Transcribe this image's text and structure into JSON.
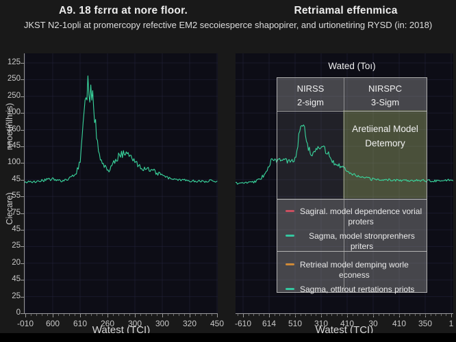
{
  "header": {
    "subtitle": "JKST N2-1opli at promercopy refective EM2 secoiesperce shapopirer, and urtionetiring RYSD (in: 2018)"
  },
  "colors": {
    "background": "#191919",
    "plot_background": "#0d0d16",
    "grid": "#23233c",
    "axis": "#9a9a9a",
    "tick_label": "#c9c9c9",
    "title_text": "#ececec",
    "spectrum_line": "#3ad79e",
    "legend_panel_gray": "rgba(150,150,150,0.42)",
    "legend_panel_dim": "rgba(150,150,150,0.15)",
    "legend_panel_green": "rgba(160,175,110,0.42)",
    "legend_border": "#b2b2b2"
  },
  "chart_data": [
    {
      "type": "line",
      "panel": "left",
      "title": "A9. 18 fɛrrɑ at nore floor.",
      "xlabel": "Watest (TCI)",
      "ylabel_upper": "nnoetíñlhris)",
      "ylabel_lower": "Ciecare)",
      "x_tick_labels": [
        "-010",
        "600",
        "610",
        "260",
        "300",
        "300",
        "320",
        "450"
      ],
      "y_tick_labels": [
        "125",
        "250",
        "250",
        "100",
        "160",
        "145",
        "100",
        "45",
        "55",
        "75",
        "45",
        "25",
        "20",
        "45",
        "25",
        "0"
      ],
      "grid": true,
      "line_color": "#3ad79e",
      "series": [
        {
          "name": "spectrum",
          "profile_xfrac_yfrac_noise": [
            [
              0,
              0.495,
              2
            ],
            [
              0.07,
              0.493,
              2
            ],
            [
              0.12,
              0.487,
              2.5
            ],
            [
              0.155,
              0.484,
              2.5
            ],
            [
              0.19,
              0.494,
              2
            ],
            [
              0.225,
              0.483,
              2.5
            ],
            [
              0.25,
              0.474,
              3
            ],
            [
              0.272,
              0.452,
              4
            ],
            [
              0.29,
              0.4,
              6
            ],
            [
              0.302,
              0.3,
              9
            ],
            [
              0.312,
              0.185,
              14
            ],
            [
              0.325,
              0.13,
              20
            ],
            [
              0.34,
              0.14,
              22
            ],
            [
              0.352,
              0.17,
              18
            ],
            [
              0.363,
              0.25,
              12
            ],
            [
              0.375,
              0.32,
              8
            ],
            [
              0.39,
              0.405,
              6
            ],
            [
              0.41,
              0.432,
              5
            ],
            [
              0.435,
              0.445,
              5
            ],
            [
              0.465,
              0.42,
              5
            ],
            [
              0.49,
              0.392,
              6
            ],
            [
              0.515,
              0.383,
              6
            ],
            [
              0.54,
              0.392,
              5
            ],
            [
              0.565,
              0.408,
              4
            ],
            [
              0.595,
              0.438,
              4
            ],
            [
              0.635,
              0.447,
              4
            ],
            [
              0.675,
              0.455,
              3.5
            ],
            [
              0.715,
              0.47,
              3
            ],
            [
              0.775,
              0.486,
              2.5
            ],
            [
              0.84,
              0.49,
              2
            ],
            [
              0.92,
              0.492,
              2
            ],
            [
              1,
              0.49,
              2
            ]
          ]
        }
      ]
    },
    {
      "type": "line",
      "panel": "right",
      "title": "Retriamal effenmica",
      "xlabel": "Watest (TCI)",
      "x_tick_labels": [
        "-610",
        "614",
        "510",
        "310",
        "410",
        "30",
        "410",
        "350",
        "1"
      ],
      "y_tick_labels": [],
      "grid": true,
      "line_color": "#3ad79e",
      "series": [
        {
          "name": "spectrum",
          "profile_xfrac_yfrac_noise": [
            [
              0,
              0.5,
              1.5
            ],
            [
              0.05,
              0.498,
              1.5
            ],
            [
              0.09,
              0.493,
              2
            ],
            [
              0.115,
              0.484,
              2.5
            ],
            [
              0.135,
              0.462,
              3.5
            ],
            [
              0.152,
              0.43,
              4
            ],
            [
              0.168,
              0.412,
              4.5
            ],
            [
              0.185,
              0.418,
              4
            ],
            [
              0.205,
              0.403,
              4.5
            ],
            [
              0.225,
              0.412,
              4
            ],
            [
              0.245,
              0.415,
              4
            ],
            [
              0.262,
              0.418,
              4
            ],
            [
              0.278,
              0.39,
              5
            ],
            [
              0.292,
              0.315,
              7
            ],
            [
              0.302,
              0.26,
              9
            ],
            [
              0.312,
              0.255,
              10
            ],
            [
              0.322,
              0.3,
              8
            ],
            [
              0.333,
              0.36,
              6
            ],
            [
              0.348,
              0.398,
              4.5
            ],
            [
              0.362,
              0.368,
              5
            ],
            [
              0.378,
              0.36,
              5
            ],
            [
              0.395,
              0.363,
              5
            ],
            [
              0.412,
              0.372,
              4.5
            ],
            [
              0.432,
              0.395,
              4
            ],
            [
              0.452,
              0.42,
              3.5
            ],
            [
              0.475,
              0.43,
              3
            ],
            [
              0.505,
              0.445,
              3
            ],
            [
              0.535,
              0.462,
              2.5
            ],
            [
              0.575,
              0.477,
              2
            ],
            [
              0.625,
              0.484,
              2
            ],
            [
              0.7,
              0.487,
              2
            ],
            [
              0.8,
              0.488,
              2
            ],
            [
              0.9,
              0.49,
              2
            ],
            [
              1,
              0.487,
              2
            ]
          ]
        }
      ],
      "legend": {
        "title": "Wated (Toı)",
        "col_headers": [
          "NIRSS\n2-sigm",
          "NIRSPC\n3-Sigm"
        ],
        "region_label": "Aretiienal Model\nDetemory",
        "groups": [
          [
            {
              "color": "#c94f60",
              "label": "Sagiral. model dependence vorial\nproters"
            },
            {
              "color": "#35c7a0",
              "label": "Sagma, model stronprenhers priters"
            }
          ],
          [
            {
              "color": "#cf8a36",
              "label": "Retrieal model demping worle\neconess"
            },
            {
              "color": "#35c7a0",
              "label": "Sagma, ottlrout rertations priots"
            }
          ]
        ]
      }
    }
  ]
}
